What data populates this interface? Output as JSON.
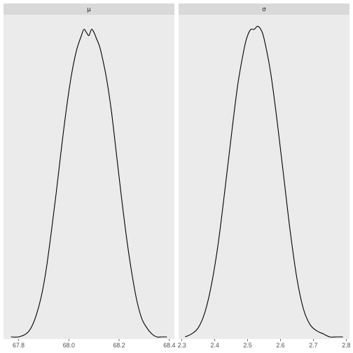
{
  "chart_data": [
    {
      "type": "line",
      "title": "μ",
      "xlabel": "",
      "ylabel": "",
      "xlim": [
        67.74,
        68.42
      ],
      "x_ticks": [
        67.8,
        68.0,
        68.2,
        68.4
      ],
      "x_tick_labels": [
        "67.8",
        "68.0",
        "68.2",
        "68.4"
      ],
      "ylim": [
        0,
        1.05
      ],
      "grid": false,
      "series": [
        {
          "x": [
            67.77,
            67.8,
            67.83,
            67.85,
            67.87,
            67.89,
            67.91,
            67.93,
            67.95,
            67.97,
            67.99,
            68.01,
            68.03,
            68.05,
            68.06,
            68.07,
            68.08,
            68.09,
            68.1,
            68.11,
            68.12,
            68.13,
            68.15,
            68.17,
            68.19,
            68.21,
            68.23,
            68.25,
            68.27,
            68.29,
            68.31,
            68.33,
            68.35,
            68.37,
            68.39
          ],
          "y": [
            0.0,
            0.0,
            0.01,
            0.03,
            0.07,
            0.13,
            0.22,
            0.34,
            0.47,
            0.61,
            0.74,
            0.85,
            0.93,
            0.98,
            1.0,
            0.99,
            0.98,
            1.0,
            0.99,
            0.97,
            0.95,
            0.92,
            0.84,
            0.73,
            0.59,
            0.45,
            0.32,
            0.21,
            0.12,
            0.06,
            0.03,
            0.01,
            0.0,
            0.0,
            0.0
          ]
        }
      ]
    },
    {
      "type": "line",
      "title": "σ",
      "xlabel": "",
      "ylabel": "",
      "xlim": [
        2.29,
        2.81
      ],
      "x_ticks": [
        2.3,
        2.4,
        2.5,
        2.6,
        2.7,
        2.8
      ],
      "x_tick_labels": [
        "2.3",
        "2.4",
        "2.5",
        "2.6",
        "2.7",
        "2.8"
      ],
      "ylim": [
        0,
        1.05
      ],
      "grid": false,
      "series": [
        {
          "x": [
            2.31,
            2.33,
            2.35,
            2.37,
            2.39,
            2.41,
            2.43,
            2.45,
            2.47,
            2.49,
            2.5,
            2.51,
            2.52,
            2.53,
            2.54,
            2.55,
            2.57,
            2.59,
            2.61,
            2.63,
            2.65,
            2.67,
            2.69,
            2.71,
            2.73,
            2.75,
            2.77,
            2.79
          ],
          "y": [
            0.0,
            0.01,
            0.03,
            0.08,
            0.17,
            0.3,
            0.47,
            0.65,
            0.82,
            0.94,
            0.98,
            1.0,
            1.0,
            1.01,
            1.0,
            0.97,
            0.86,
            0.7,
            0.52,
            0.34,
            0.19,
            0.09,
            0.04,
            0.02,
            0.01,
            0.0,
            0.0,
            0.0
          ]
        }
      ]
    }
  ]
}
